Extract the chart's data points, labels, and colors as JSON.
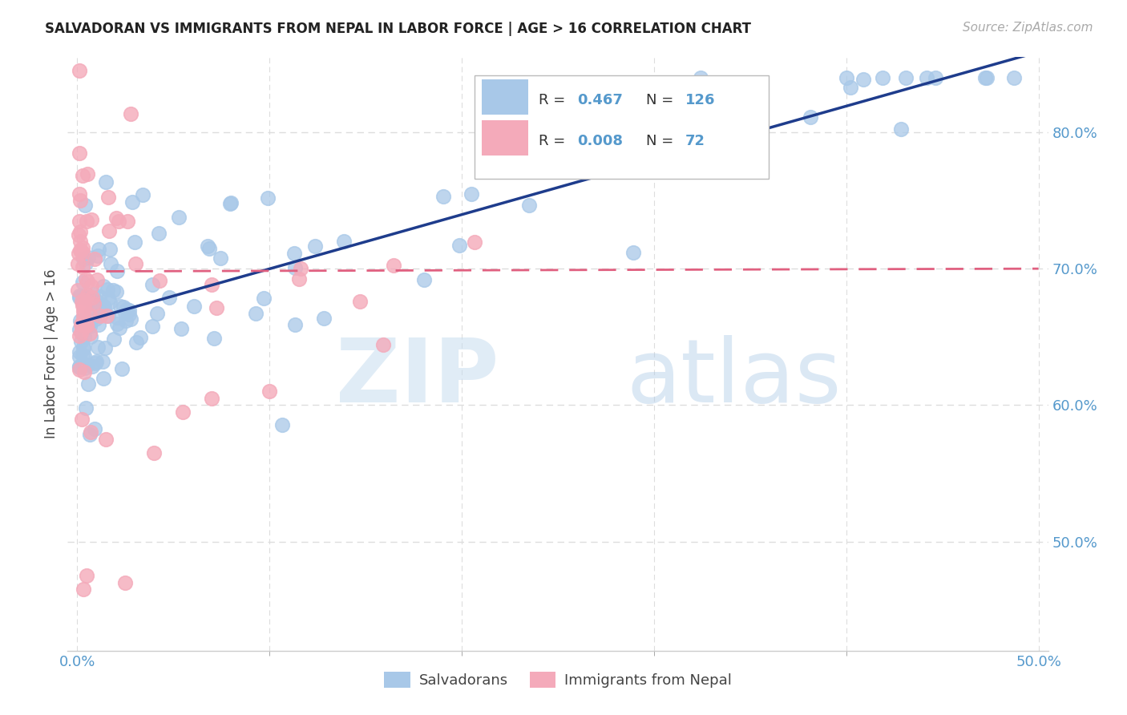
{
  "title": "SALVADORAN VS IMMIGRANTS FROM NEPAL IN LABOR FORCE | AGE > 16 CORRELATION CHART",
  "source": "Source: ZipAtlas.com",
  "ylabel": "In Labor Force | Age > 16",
  "x_tick_labels_edge": [
    "0.0%",
    "50.0%"
  ],
  "x_ticks_edge": [
    0.0,
    0.5
  ],
  "y_tick_labels_right": [
    "50.0%",
    "60.0%",
    "70.0%",
    "80.0%"
  ],
  "y_ticks_right": [
    0.5,
    0.6,
    0.7,
    0.8
  ],
  "xlim": [
    -0.005,
    0.505
  ],
  "ylim": [
    0.42,
    0.855
  ],
  "legend_label1": "Salvadorans",
  "legend_label2": "Immigrants from Nepal",
  "salvadoran_color": "#a8c8e8",
  "nepal_color": "#f4aaba",
  "trend1_color": "#1e3c8c",
  "trend2_color": "#e06080",
  "background_color": "#ffffff",
  "grid_color": "#dddddd",
  "title_color": "#222222",
  "source_color": "#aaaaaa",
  "axis_label_color": "#444444",
  "right_tick_color": "#5599cc",
  "watermark_zip_color": "#c8ddf0",
  "watermark_atlas_color": "#b0cce8"
}
